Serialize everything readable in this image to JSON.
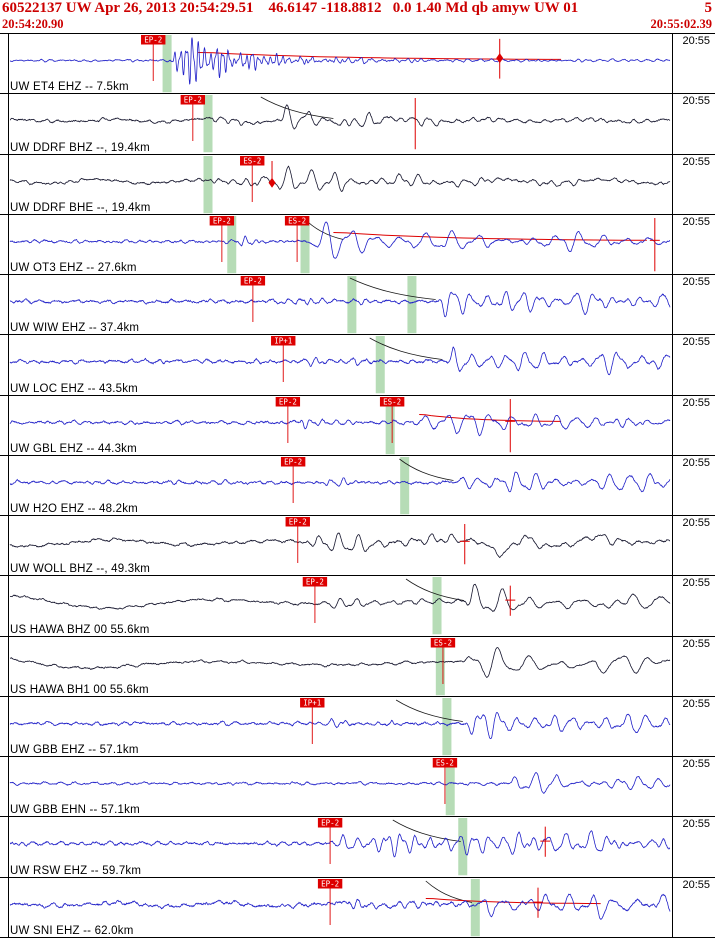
{
  "header": {
    "event_line": "60522137 UW Apr 26, 2013 20:54:29.51    46.6147 -118.8812   0.0 1.40 Md qb amyw UW 01",
    "event_count": "5",
    "start_time": "20:54:20.90",
    "end_time": "20:55:02.39"
  },
  "colors": {
    "header_red": "#cc0000",
    "pick_red": "#dd0000",
    "trace_blue": "#2020c8",
    "trace_dark": "#16162e",
    "green_band": "#a9d6a9",
    "grid_black": "#000000"
  },
  "rows": [
    {
      "station": "UW ET4 EHZ -- 7.5km",
      "time_label": "20:55",
      "color": "blue",
      "picks": [
        {
          "label": "EP-2",
          "x": 0.217
        }
      ],
      "green_bars": [
        0.238
      ],
      "markers": [
        {
          "x": 0.742,
          "type": "diamond-line"
        }
      ],
      "coda": {
        "x1": 0.285,
        "x2": 0.835,
        "amp": 8
      },
      "curve": null,
      "wave": {
        "na": 1.1,
        "nf": 60,
        "events": [
          {
            "t": 0.243,
            "f": 110,
            "a": 27,
            "d": 0.09
          },
          {
            "t": 0.27,
            "f": 55,
            "a": 3,
            "d": 0.45
          }
        ]
      }
    },
    {
      "station": "UW DDRF BHZ --, 19.4km",
      "time_label": "20:55",
      "color": "dark",
      "picks": [
        {
          "label": "EP-2",
          "x": 0.277
        }
      ],
      "green_bars": [
        0.3
      ],
      "markers": [
        {
          "x": 0.614,
          "type": "vline"
        }
      ],
      "coda": null,
      "curve": {
        "x1": 0.38,
        "x2": 0.49
      },
      "wave": {
        "na": 1.6,
        "nf": 45,
        "lp": 2.2,
        "lpf": 7,
        "events": [
          {
            "t": 0.3,
            "f": 55,
            "a": 5,
            "d": 0.06
          },
          {
            "t": 0.405,
            "f": 32,
            "a": 13,
            "d": 0.1
          },
          {
            "t": 0.5,
            "f": 45,
            "a": 4,
            "d": 0.3
          }
        ]
      }
    },
    {
      "station": "UW DDRF BHE --, 19.4km",
      "time_label": "20:55",
      "color": "dark",
      "picks": [
        {
          "label": "ES-2",
          "x": 0.367
        }
      ],
      "green_bars": [
        0.3
      ],
      "markers": [
        {
          "x": 0.397,
          "type": "diamond-short"
        }
      ],
      "coda": null,
      "curve": null,
      "wave": {
        "na": 1.6,
        "nf": 45,
        "lp": 2.2,
        "lpf": 6.5,
        "events": [
          {
            "t": 0.303,
            "f": 50,
            "a": 6,
            "d": 0.08
          },
          {
            "t": 0.372,
            "f": 30,
            "a": 16,
            "d": 0.12
          },
          {
            "t": 0.47,
            "f": 40,
            "a": 5,
            "d": 0.35
          }
        ]
      }
    },
    {
      "station": "UW OT3 EHZ -- 27.6km",
      "time_label": "20:55",
      "color": "blue",
      "picks": [
        {
          "label": "EP-2",
          "x": 0.321
        },
        {
          "label": "ES-2",
          "x": 0.435
        }
      ],
      "green_bars": [
        0.336,
        0.447
      ],
      "markers": [
        {
          "x": 0.977,
          "type": "cross-tall"
        }
      ],
      "coda": {
        "x1": 0.49,
        "x2": 0.965,
        "amp": 9
      },
      "curve": {
        "x1": 0.445,
        "x2": 0.505
      },
      "wave": {
        "na": 1.7,
        "nf": 50,
        "events": [
          {
            "t": 0.34,
            "f": 60,
            "a": 5,
            "d": 0.05
          },
          {
            "t": 0.452,
            "f": 26,
            "a": 16,
            "d": 0.28
          },
          {
            "t": 0.75,
            "f": 30,
            "a": 6,
            "d": 0.4
          }
        ]
      }
    },
    {
      "station": "UW WIW EHZ -- 37.4km",
      "time_label": "20:55",
      "color": "blue",
      "picks": [
        {
          "label": "EP-2",
          "x": 0.368
        }
      ],
      "green_bars": [
        0.518,
        0.609
      ],
      "markers": [],
      "coda": null,
      "curve": {
        "x1": 0.515,
        "x2": 0.645
      },
      "wave": {
        "na": 2.2,
        "nf": 40,
        "events": [
          {
            "t": 0.41,
            "f": 60,
            "a": 4,
            "d": 0.1
          },
          {
            "t": 0.648,
            "f": 38,
            "a": 12,
            "d": 0.3
          },
          {
            "t": 0.85,
            "f": 30,
            "a": 8,
            "d": 0.3
          }
        ]
      }
    },
    {
      "station": "UW LOC EHZ -- 43.5km",
      "time_label": "20:55",
      "color": "blue",
      "picks": [
        {
          "label": "IP+1",
          "x": 0.414
        }
      ],
      "green_bars": [
        0.561
      ],
      "markers": [],
      "coda": null,
      "curve": {
        "x1": 0.545,
        "x2": 0.655
      },
      "wave": {
        "na": 2.2,
        "nf": 42,
        "events": [
          {
            "t": 0.44,
            "f": 55,
            "a": 4,
            "d": 0.1
          },
          {
            "t": 0.66,
            "f": 36,
            "a": 12,
            "d": 0.3
          },
          {
            "t": 0.88,
            "f": 28,
            "a": 8,
            "d": 0.3
          }
        ]
      }
    },
    {
      "station": "UW GBL EHZ -- 44.3km",
      "time_label": "20:55",
      "color": "blue",
      "picks": [
        {
          "label": "EP-2",
          "x": 0.421
        },
        {
          "label": "ES-2",
          "x": 0.579
        }
      ],
      "green_bars": [
        0.576
      ],
      "markers": [
        {
          "x": 0.758,
          "type": "cross-tall"
        }
      ],
      "coda": {
        "x1": 0.62,
        "x2": 0.835,
        "amp": 8
      },
      "curve": null,
      "wave": {
        "na": 2.0,
        "nf": 45,
        "events": [
          {
            "t": 0.432,
            "f": 55,
            "a": 7,
            "d": 0.06
          },
          {
            "t": 0.615,
            "f": 30,
            "a": 15,
            "d": 0.18
          },
          {
            "t": 0.78,
            "f": 35,
            "a": 6,
            "d": 0.4
          }
        ]
      }
    },
    {
      "station": "UW H2O EHZ -- 48.2km",
      "time_label": "20:55",
      "color": "blue",
      "picks": [
        {
          "label": "EP-2",
          "x": 0.429
        }
      ],
      "green_bars": [
        0.598
      ],
      "markers": [],
      "coda": null,
      "curve": {
        "x1": 0.59,
        "x2": 0.672
      },
      "wave": {
        "na": 2.0,
        "nf": 45,
        "events": [
          {
            "t": 0.44,
            "f": 55,
            "a": 4,
            "d": 0.1
          },
          {
            "t": 0.675,
            "f": 35,
            "a": 11,
            "d": 0.28
          },
          {
            "t": 0.88,
            "f": 30,
            "a": 7,
            "d": 0.3
          }
        ]
      }
    },
    {
      "station": "UW WOLL BHZ --, 49.3km",
      "time_label": "20:55",
      "color": "dark",
      "picks": [
        {
          "label": "EP-2",
          "x": 0.436
        }
      ],
      "green_bars": [],
      "markers": [
        {
          "x": 0.689,
          "type": "cross-mid"
        }
      ],
      "coda": null,
      "curve": null,
      "wave": {
        "na": 1.8,
        "nf": 30,
        "lp": 3.5,
        "lpf": 4,
        "events": [
          {
            "t": 0.45,
            "f": 35,
            "a": 8,
            "d": 0.35
          },
          {
            "t": 0.7,
            "f": 10,
            "a": 9,
            "d": 0.5
          }
        ]
      }
    },
    {
      "station": "US HAWA BHZ 00 55.6km",
      "time_label": "20:55",
      "color": "dark",
      "picks": [
        {
          "label": "EP-2",
          "x": 0.462
        }
      ],
      "green_bars": [
        0.647
      ],
      "markers": [
        {
          "x": 0.758,
          "type": "cross-short"
        }
      ],
      "coda": null,
      "curve": {
        "x1": 0.6,
        "x2": 0.688
      },
      "wave": {
        "na": 1.5,
        "nf": 30,
        "lp": 8,
        "lpf": 3,
        "lpd": 2.2,
        "events": [
          {
            "t": 0.47,
            "f": 40,
            "a": 5,
            "d": 0.15
          },
          {
            "t": 0.69,
            "f": 25,
            "a": 13,
            "d": 0.25
          },
          {
            "t": 0.88,
            "f": 18,
            "a": 8,
            "d": 0.4
          }
        ]
      }
    },
    {
      "station": "US HAWA BH1 00 55.6km",
      "time_label": "20:55",
      "color": "dark",
      "picks": [
        {
          "label": "ES-2",
          "x": 0.656
        }
      ],
      "green_bars": [
        0.652
      ],
      "markers": [],
      "coda": null,
      "curve": null,
      "wave": {
        "na": 1.5,
        "nf": 28,
        "lp": 6.5,
        "lpf": 2.8,
        "lpd": 1.8,
        "events": [
          {
            "t": 0.688,
            "f": 22,
            "a": 13,
            "d": 0.3
          },
          {
            "t": 0.87,
            "f": 16,
            "a": 7,
            "d": 0.4
          }
        ]
      }
    },
    {
      "station": "UW GBB EHZ -- 57.1km",
      "time_label": "20:55",
      "color": "blue",
      "picks": [
        {
          "label": "IP+1",
          "x": 0.458
        }
      ],
      "green_bars": [
        0.662
      ],
      "markers": [],
      "coda": null,
      "curve": {
        "x1": 0.585,
        "x2": 0.686
      },
      "wave": {
        "na": 2.0,
        "nf": 42,
        "events": [
          {
            "t": 0.47,
            "f": 55,
            "a": 3,
            "d": 0.15
          },
          {
            "t": 0.69,
            "f": 36,
            "a": 13,
            "d": 0.22
          },
          {
            "t": 0.86,
            "f": 30,
            "a": 6,
            "d": 0.35
          }
        ]
      }
    },
    {
      "station": "UW GBB EHN -- 57.1km",
      "time_label": "20:55",
      "color": "blue",
      "picks": [
        {
          "label": "ES-2",
          "x": 0.659
        }
      ],
      "green_bars": [
        0.667
      ],
      "markers": [],
      "coda": null,
      "curve": null,
      "wave": {
        "na": 1.6,
        "nf": 40,
        "events": [
          {
            "t": 0.755,
            "f": 32,
            "a": 15,
            "d": 0.1
          },
          {
            "t": 0.83,
            "f": 35,
            "a": 5,
            "d": 0.3
          }
        ]
      }
    },
    {
      "station": "UW RSW EHZ -- 59.7km",
      "time_label": "20:55",
      "color": "blue",
      "picks": [
        {
          "label": "EP-2",
          "x": 0.485
        }
      ],
      "green_bars": [
        0.686
      ],
      "markers": [
        {
          "x": 0.811,
          "type": "cross-short"
        }
      ],
      "coda": null,
      "curve": {
        "x1": 0.58,
        "x2": 0.683
      },
      "wave": {
        "na": 2.2,
        "nf": 42,
        "events": [
          {
            "t": 0.497,
            "f": 45,
            "a": 12,
            "d": 0.5
          },
          {
            "t": 0.75,
            "f": 30,
            "a": 8,
            "d": 0.4
          }
        ]
      }
    },
    {
      "station": "UW SNI EHZ -- 62.0km",
      "time_label": "20:55",
      "color": "blue",
      "picks": [
        {
          "label": "EP-2",
          "x": 0.485
        }
      ],
      "green_bars": [
        0.705
      ],
      "markers": [
        {
          "x": 0.8,
          "type": "cross-short"
        }
      ],
      "coda": {
        "x1": 0.63,
        "x2": 0.895,
        "amp": 6
      },
      "curve": {
        "x1": 0.63,
        "x2": 0.7
      },
      "wave": {
        "na": 2.4,
        "nf": 40,
        "lp": 2,
        "lpf": 6,
        "events": [
          {
            "t": 0.5,
            "f": 50,
            "a": 5,
            "d": 0.3
          },
          {
            "t": 0.71,
            "f": 30,
            "a": 11,
            "d": 0.3
          },
          {
            "t": 0.88,
            "f": 26,
            "a": 9,
            "d": 0.3
          }
        ]
      }
    }
  ]
}
